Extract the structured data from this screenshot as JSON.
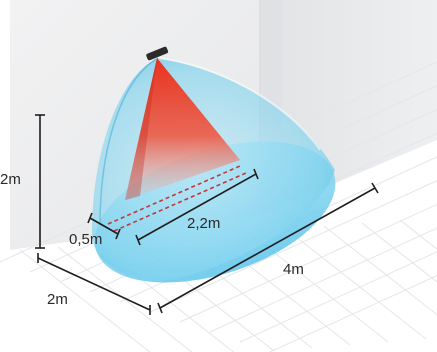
{
  "diagram": {
    "labels": {
      "height": "2m",
      "depth": "2m",
      "length": "4m",
      "inner_offset": "0,5m",
      "detection_line": "2,2m"
    },
    "colors": {
      "cone_blue": "#7fd3ee",
      "cone_blue_dark": "#4fb8e0",
      "beam_red": "#e8321e",
      "dim_line": "#1e1e1e",
      "dashed_line": "#c2373a",
      "floor_grid": "#e4e6ea",
      "wall": "#eeeeef",
      "sensor": "#2b2b2b"
    },
    "icons": {
      "sensor": "motion-sensor-icon"
    }
  }
}
